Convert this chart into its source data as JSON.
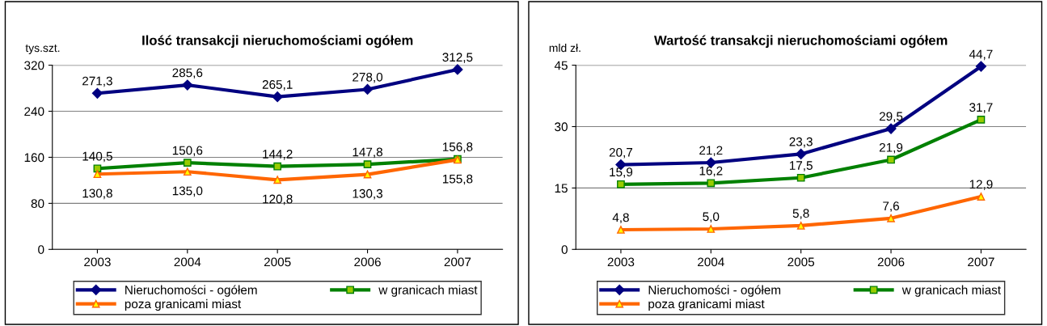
{
  "chart_data": [
    {
      "type": "line",
      "title": "Ilość transakcji nieruchomościami ogółem",
      "ylabel": "tys.szt.",
      "categories": [
        "2003",
        "2004",
        "2005",
        "2006",
        "2007"
      ],
      "ylim": [
        0,
        320
      ],
      "yticks": [
        0,
        80,
        160,
        240,
        320
      ],
      "grid": "y",
      "legend": "bottom",
      "series": [
        {
          "name": "Nieruchomości - ogółem",
          "color": "#000080",
          "marker": "diamond",
          "values": [
            271.3,
            285.6,
            265.1,
            278.0,
            312.5
          ],
          "value_labels": [
            "271,3",
            "285,6",
            "265,1",
            "278,0",
            "312,5"
          ]
        },
        {
          "name": "w granicach miast",
          "color": "#008000",
          "marker": "square",
          "values": [
            140.5,
            150.6,
            144.2,
            147.8,
            156.8
          ],
          "value_labels": [
            "140,5",
            "150,6",
            "144,2",
            "147,8",
            "156,8"
          ]
        },
        {
          "name": "poza granicami miast",
          "color": "#ff6600",
          "marker": "triangle",
          "values": [
            130.8,
            135.0,
            120.8,
            130.3,
            155.8
          ],
          "value_labels": [
            "130,8",
            "135,0",
            "120,8",
            "130,3",
            "155,8"
          ]
        }
      ]
    },
    {
      "type": "line",
      "title": "Wartość transakcji nieruchomościami ogółem",
      "ylabel": "mld zł.",
      "categories": [
        "2003",
        "2004",
        "2005",
        "2006",
        "2007"
      ],
      "ylim": [
        0,
        45
      ],
      "yticks": [
        0,
        15,
        30,
        45
      ],
      "grid": "y",
      "legend": "bottom",
      "series": [
        {
          "name": "Nieruchomości - ogółem",
          "color": "#000080",
          "marker": "diamond",
          "values": [
            20.7,
            21.2,
            23.3,
            29.5,
            44.7
          ],
          "value_labels": [
            "20,7",
            "21,2",
            "23,3",
            "29,5",
            "44,7"
          ]
        },
        {
          "name": "w granicach miast",
          "color": "#008000",
          "marker": "square",
          "values": [
            15.9,
            16.2,
            17.5,
            21.9,
            31.7
          ],
          "value_labels": [
            "15,9",
            "16,2",
            "17,5",
            "21,9",
            "31,7"
          ]
        },
        {
          "name": "poza granicami miast",
          "color": "#ff6600",
          "marker": "triangle",
          "values": [
            4.8,
            5.0,
            5.8,
            7.6,
            12.9
          ],
          "value_labels": [
            "4,8",
            "5,0",
            "5,8",
            "7,6",
            "12,9"
          ]
        }
      ]
    }
  ]
}
